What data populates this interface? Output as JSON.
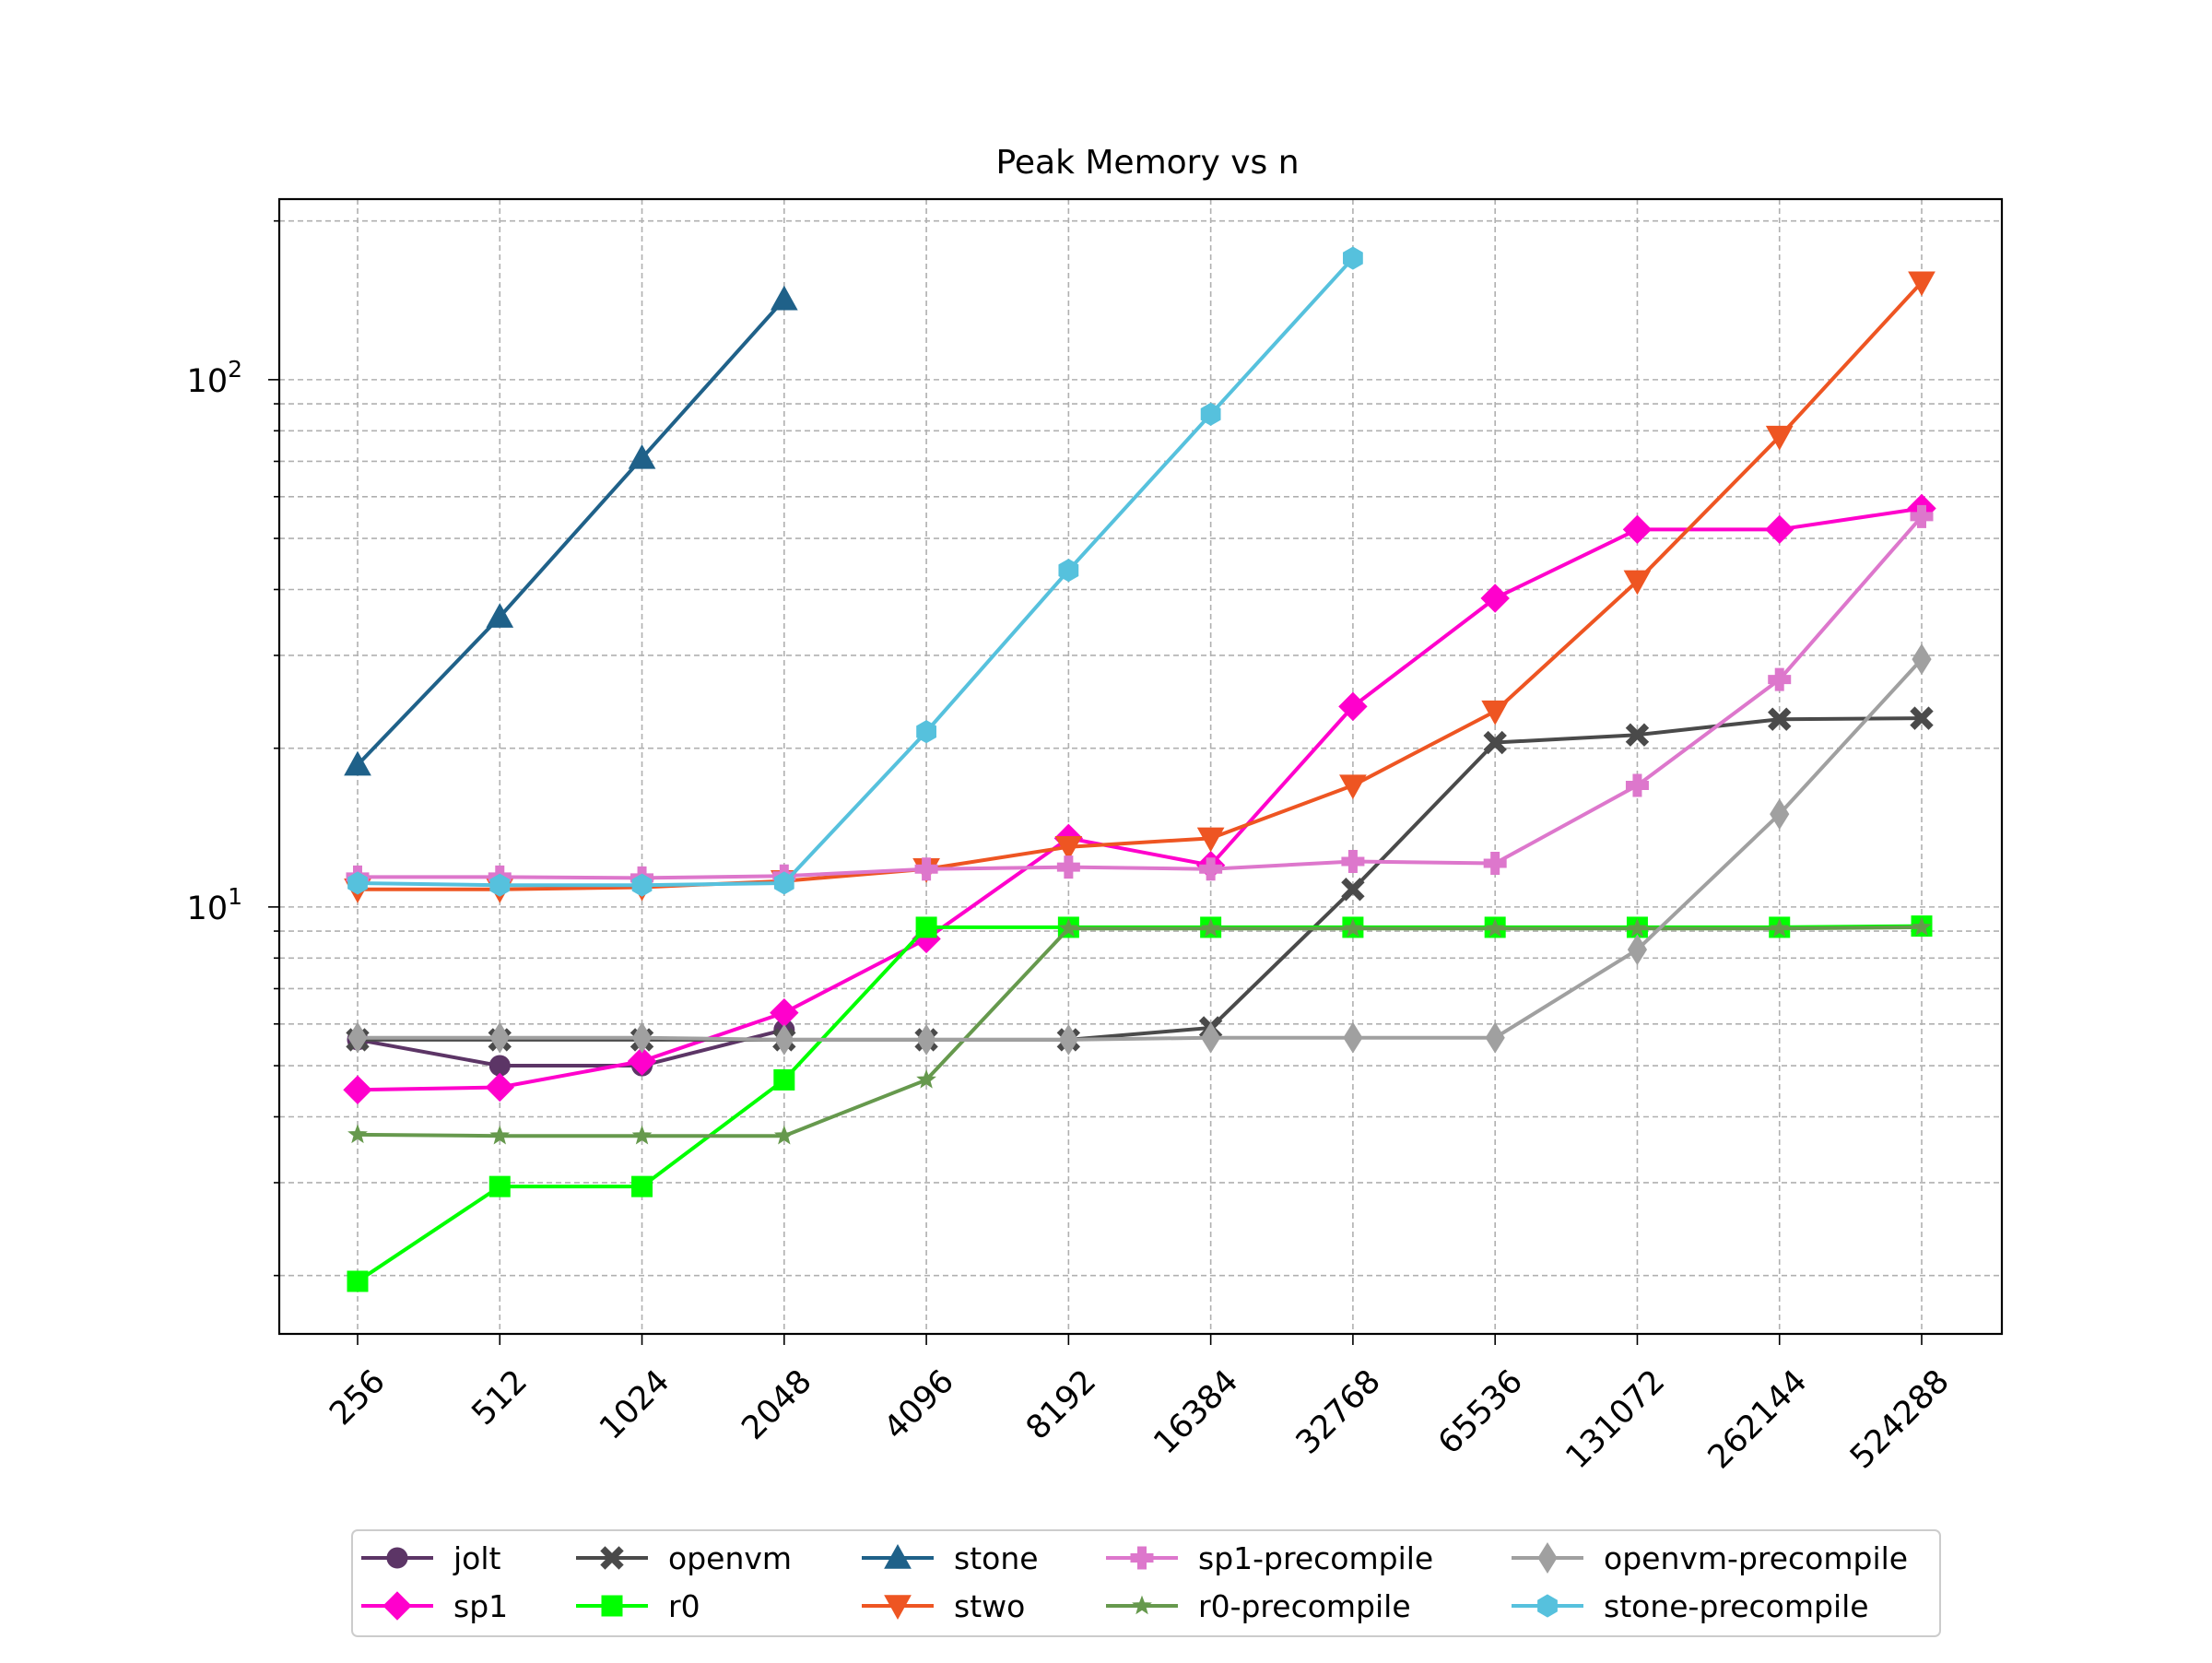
{
  "chart_data": {
    "type": "line",
    "title": "Peak Memory vs n",
    "xlabel": "",
    "ylabel": "",
    "yscale": "log",
    "ylim": [
      1.55,
      220
    ],
    "grid": true,
    "legend_position": "bottom-center",
    "categories": [
      "256",
      "512",
      "1024",
      "2048",
      "4096",
      "8192",
      "16384",
      "32768",
      "65536",
      "131072",
      "262144",
      "524288"
    ],
    "y_ticks": [
      {
        "value": 10,
        "base": "10",
        "exp": "1"
      },
      {
        "value": 100,
        "base": "10",
        "exp": "2"
      }
    ],
    "series": [
      {
        "name": "jolt",
        "color": "#5c3566",
        "marker": "circle",
        "values": [
          5.6,
          5.0,
          5.0,
          5.85,
          null,
          null,
          null,
          null,
          null,
          null,
          null,
          null
        ]
      },
      {
        "name": "sp1",
        "color": "#ff00cc",
        "marker": "diamond",
        "values": [
          4.5,
          4.55,
          5.1,
          6.3,
          8.7,
          13.5,
          12.0,
          24.0,
          38.5,
          52.0,
          52.0,
          57.0
        ]
      },
      {
        "name": "openvm",
        "color": "#4a4a4a",
        "marker": "x",
        "values": [
          5.6,
          5.6,
          5.6,
          5.6,
          5.6,
          5.6,
          5.9,
          10.8,
          20.5,
          21.2,
          22.7,
          22.8
        ]
      },
      {
        "name": "r0",
        "color": "#00ff00",
        "marker": "square",
        "values": [
          1.95,
          2.95,
          2.95,
          4.7,
          9.15,
          9.15,
          9.15,
          9.15,
          9.15,
          9.15,
          9.15,
          9.2
        ]
      },
      {
        "name": "stone",
        "color": "#1f6189",
        "marker": "triangle-up",
        "values": [
          18.6,
          35.5,
          71.0,
          142.0,
          null,
          null,
          null,
          null,
          null,
          null,
          null,
          null
        ]
      },
      {
        "name": "stwo",
        "color": "#ee5522",
        "marker": "triangle-down",
        "values": [
          10.8,
          10.8,
          10.9,
          11.2,
          11.8,
          13.0,
          13.5,
          17.0,
          23.5,
          41.5,
          78.0,
          153.0
        ]
      },
      {
        "name": "sp1-precompile",
        "color": "#dd77cc",
        "marker": "plus",
        "values": [
          11.4,
          11.4,
          11.35,
          11.45,
          11.8,
          11.9,
          11.8,
          12.2,
          12.1,
          17.0,
          27.0,
          55.0
        ]
      },
      {
        "name": "r0-precompile",
        "color": "#66994d",
        "marker": "star",
        "values": [
          3.7,
          3.68,
          3.68,
          3.68,
          4.7,
          9.1,
          9.1,
          9.1,
          9.1,
          9.1,
          9.1,
          9.15
        ]
      },
      {
        "name": "openvm-precompile",
        "color": "#a0a0a0",
        "marker": "thin-diamond",
        "values": [
          5.65,
          5.65,
          5.65,
          5.6,
          5.6,
          5.6,
          5.65,
          5.65,
          5.65,
          8.3,
          15.0,
          29.5
        ]
      },
      {
        "name": "stone-precompile",
        "color": "#56c1dd",
        "marker": "hexagon",
        "values": [
          11.1,
          11.0,
          11.0,
          11.1,
          21.5,
          43.5,
          86.0,
          170.0,
          null,
          null,
          null,
          null
        ]
      }
    ],
    "legend_columns": [
      [
        "jolt",
        "sp1"
      ],
      [
        "openvm",
        "r0"
      ],
      [
        "stone",
        "stwo"
      ],
      [
        "sp1-precompile",
        "r0-precompile"
      ],
      [
        "openvm-precompile",
        "stone-precompile"
      ]
    ]
  }
}
